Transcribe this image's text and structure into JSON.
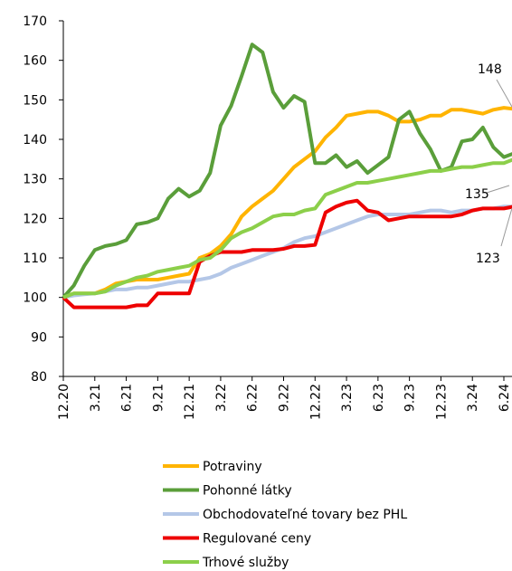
{
  "chart_data": {
    "type": "line",
    "categories": [
      "12.20",
      null,
      null,
      "3.21",
      null,
      null,
      "6.21",
      null,
      null,
      "9.21",
      null,
      null,
      "12.21",
      null,
      null,
      "3.22",
      null,
      null,
      "6.22",
      null,
      null,
      "9.22",
      null,
      null,
      "12.22",
      null,
      null,
      "3.23",
      null,
      null,
      "6.23",
      null,
      null,
      "9.23",
      null,
      null,
      "12.23",
      null,
      null,
      "3.24",
      null,
      null,
      "6.24",
      null
    ],
    "ylim": [
      80,
      170
    ],
    "yticks": [
      80,
      90,
      100,
      110,
      120,
      130,
      140,
      150,
      160,
      170
    ],
    "series": [
      {
        "name": "Potraviny",
        "color": "#ffb400",
        "values": [
          100,
          101,
          101,
          101,
          102,
          103.5,
          104,
          104.5,
          104.5,
          104.5,
          105,
          105.5,
          106,
          110,
          111,
          113,
          116,
          120.5,
          123,
          125,
          127,
          130,
          133,
          135,
          137,
          140.5,
          143,
          146,
          146.5,
          147,
          147,
          146,
          144.5,
          144.5,
          145,
          146,
          146,
          147.5,
          147.5,
          147,
          146.5,
          147.5,
          148,
          147.7
        ]
      },
      {
        "name": "Pohonné látky",
        "color": "#5a9e3a",
        "values": [
          100,
          103,
          108,
          112,
          113,
          113.5,
          114.5,
          118.5,
          119,
          120,
          125,
          127.5,
          125.5,
          127,
          131.5,
          143.5,
          148.5,
          156,
          164,
          162,
          152,
          148,
          151,
          149.5,
          134,
          134,
          136,
          133,
          134.5,
          131.5,
          133.5,
          135.5,
          145,
          147,
          141.5,
          137.5,
          132,
          133,
          139.5,
          140,
          143,
          138,
          135.5,
          136.5
        ]
      },
      {
        "name": "Obchodovateľné tovary bez PHL",
        "color": "#b4c7e7",
        "values": [
          100,
          100.5,
          100.8,
          101,
          101.5,
          102,
          102,
          102.5,
          102.5,
          103,
          103.5,
          104,
          104,
          104.5,
          105,
          106,
          107.5,
          108.5,
          109.5,
          110.5,
          111.5,
          112.5,
          114,
          115,
          115.5,
          116.5,
          117.5,
          118.5,
          119.5,
          120.5,
          121,
          121,
          121,
          121,
          121.5,
          122,
          122,
          121.5,
          122,
          122,
          122.5,
          122.5,
          123,
          123
        ]
      },
      {
        "name": "Regulované ceny",
        "color": "#ee0000",
        "values": [
          100,
          97.5,
          97.5,
          97.5,
          97.5,
          97.5,
          97.5,
          98,
          98,
          101,
          101,
          101,
          101,
          109,
          110.5,
          111.5,
          111.5,
          111.5,
          112,
          112,
          112,
          112.3,
          113,
          113,
          113.3,
          121.5,
          123,
          124,
          124.5,
          122,
          121.5,
          119.5,
          120,
          120.5,
          120.5,
          120.5,
          120.5,
          120.5,
          121,
          122,
          122.5,
          122.5,
          122.5,
          123
        ]
      },
      {
        "name": "Trhové služby",
        "color": "#8ccf4a",
        "values": [
          100,
          101,
          101,
          101,
          101.5,
          103,
          104,
          105,
          105.5,
          106.5,
          107,
          107.5,
          108,
          109.5,
          110,
          112,
          115,
          116.5,
          117.5,
          119,
          120.5,
          121,
          121,
          122,
          122.5,
          126,
          127,
          128,
          129,
          129,
          129.5,
          130,
          130.5,
          131,
          131.5,
          132,
          132,
          132.5,
          133,
          133,
          133.5,
          134,
          134,
          135
        ]
      }
    ],
    "annotations": [
      "148",
      "135",
      "123"
    ]
  }
}
